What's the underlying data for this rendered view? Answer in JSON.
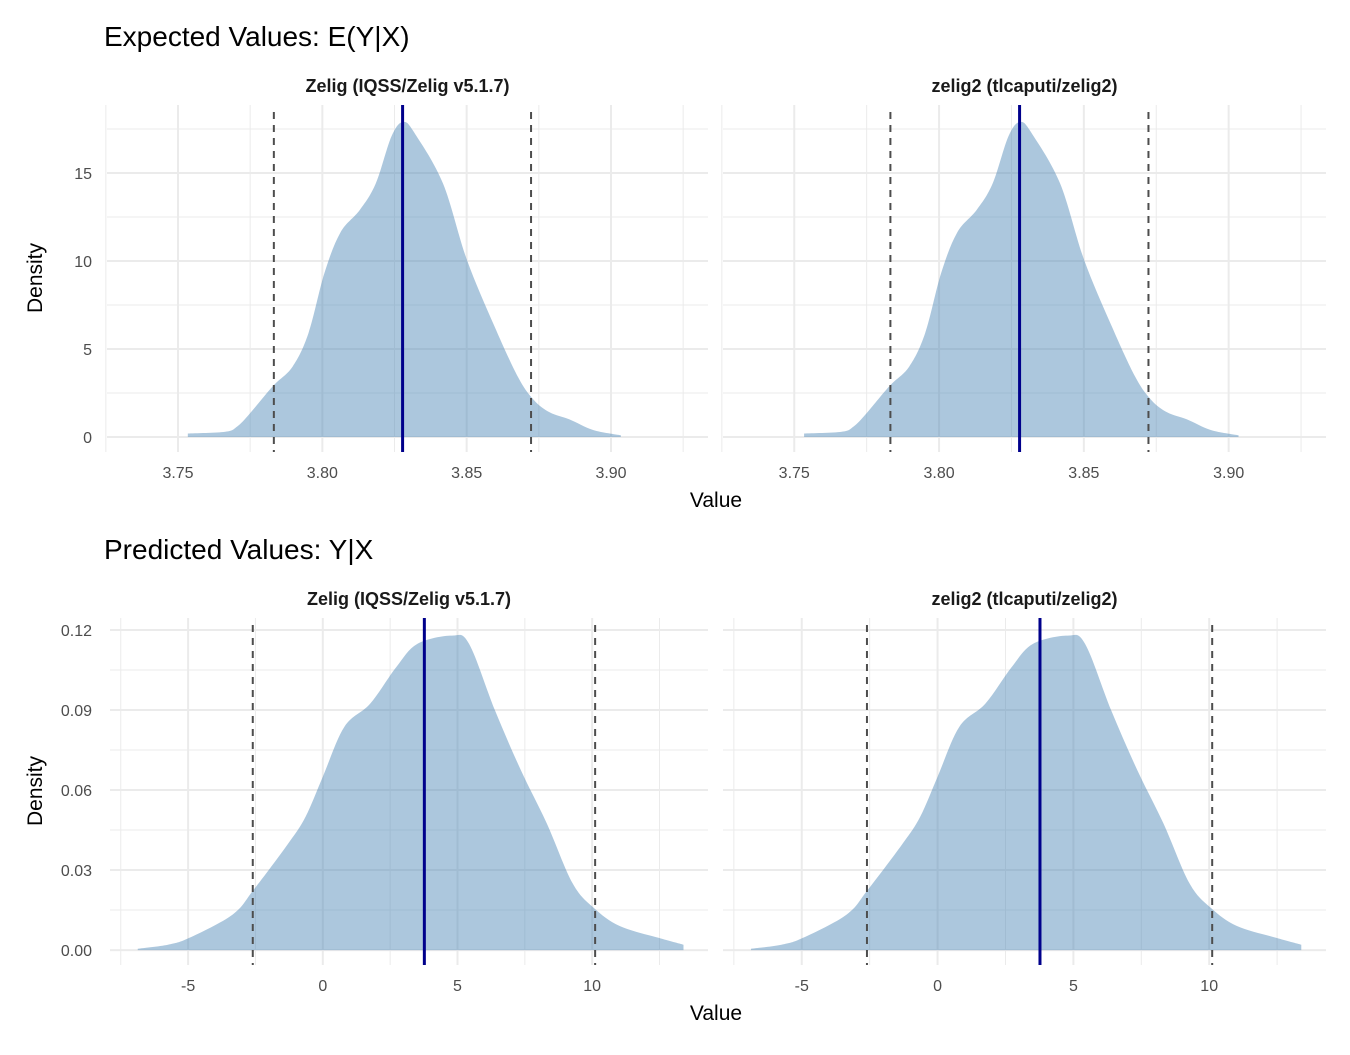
{
  "colors": {
    "fill": "#4682b4",
    "fill_opacity": 0.45,
    "mean_line": "#00008b",
    "ci_line": "#4d4d4d",
    "grid": "#ebebeb"
  },
  "chart_data": [
    {
      "type": "area",
      "title": "Expected Values: E(Y|X)",
      "xlabel": "Value",
      "ylabel": "Density",
      "facets": [
        "Zelig (IQSS/Zelig v5.1.7)",
        "zelig2 (tlcaputi/zelig2)"
      ],
      "xlim": [
        3.7254,
        3.9336
      ],
      "ylim": [
        -0.85,
        18.86
      ],
      "xticks": [
        3.75,
        3.8,
        3.85,
        3.9
      ],
      "xtick_labels": [
        "3.75",
        "3.80",
        "3.85",
        "3.90"
      ],
      "xminor": [
        3.725,
        3.775,
        3.825,
        3.875,
        3.925
      ],
      "yticks": [
        0,
        5,
        10,
        15
      ],
      "ytick_labels": [
        "0",
        "5",
        "10",
        "15"
      ],
      "yminor": [
        2.5,
        7.5,
        12.5,
        17.5
      ],
      "grid": true,
      "density": {
        "x": [
          3.7534,
          3.7664,
          3.7705,
          3.7747,
          3.7829,
          3.7897,
          3.7952,
          3.8007,
          3.8062,
          3.813,
          3.8185,
          3.824,
          3.8281,
          3.8322,
          3.8418,
          3.85,
          3.8596,
          3.8678,
          3.8733,
          3.8788,
          3.8856,
          3.8938,
          3.9034
        ],
        "y": [
          0.2,
          0.3,
          0.6,
          1.3,
          2.9,
          4.0,
          5.9,
          9.3,
          11.6,
          12.9,
          14.4,
          17.1,
          17.9,
          17.2,
          14.4,
          10.1,
          6.3,
          3.4,
          2.1,
          1.4,
          1.0,
          0.4,
          0.1
        ]
      },
      "mean": 3.8278,
      "ci": [
        3.7832,
        3.8723
      ]
    },
    {
      "type": "area",
      "title": "Predicted Values: Y|X",
      "xlabel": "Value",
      "ylabel": "Density",
      "facets": [
        "Zelig (IQSS/Zelig v5.1.7)",
        "zelig2 (tlcaputi/zelig2)"
      ],
      "xlim": [
        -7.9,
        14.3
      ],
      "ylim": [
        -0.0056,
        0.1245
      ],
      "xticks": [
        -5,
        0,
        5,
        10
      ],
      "xtick_labels": [
        "-5",
        "0",
        "5",
        "10"
      ],
      "xminor": [
        -7.5,
        -2.5,
        2.5,
        7.5,
        12.5
      ],
      "yticks": [
        0,
        0.03,
        0.06,
        0.09,
        0.12
      ],
      "ytick_labels": [
        "0.00",
        "0.03",
        "0.06",
        "0.09",
        "0.12"
      ],
      "yminor": [
        0.015,
        0.045,
        0.075,
        0.105
      ],
      "grid": true,
      "density": {
        "x": [
          -6.87,
          -5.75,
          -4.95,
          -3.35,
          -2.56,
          -1.28,
          -0.64,
          0,
          0.8,
          1.76,
          2.72,
          3.51,
          4.79,
          5.43,
          6.39,
          7.35,
          8.31,
          9.27,
          10.06,
          11.02,
          12.46,
          13.39
        ],
        "y": [
          0.0005,
          0.002,
          0.0046,
          0.0133,
          0.0227,
          0.04,
          0.05,
          0.065,
          0.0837,
          0.0924,
          0.106,
          0.1148,
          0.1179,
          0.1148,
          0.0899,
          0.0675,
          0.0476,
          0.0251,
          0.0158,
          0.009,
          0.0046,
          0.002
        ],
        "y_end": 0
      },
      "mean": 3.77,
      "ci": [
        -2.6,
        10.11
      ]
    }
  ]
}
